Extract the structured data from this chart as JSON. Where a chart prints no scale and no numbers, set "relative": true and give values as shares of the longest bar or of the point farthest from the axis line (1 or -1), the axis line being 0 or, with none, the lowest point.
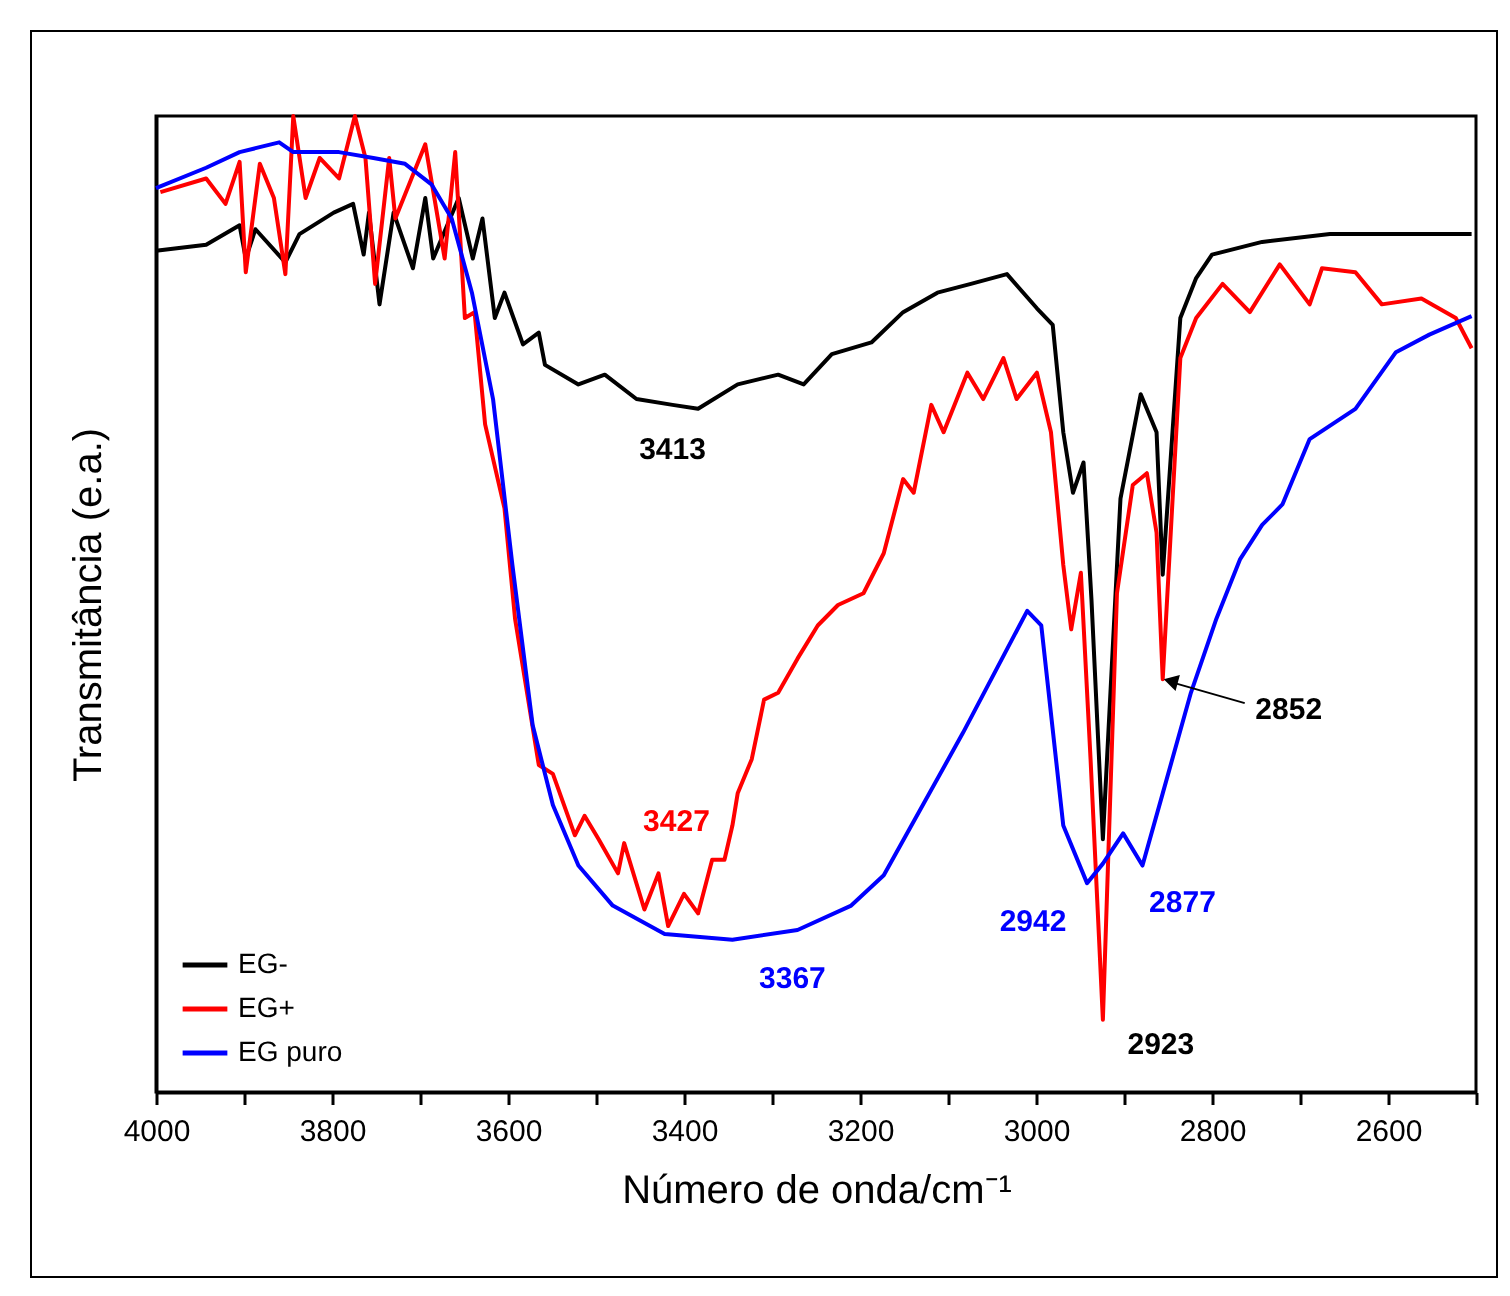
{
  "chart_data": {
    "type": "line",
    "relative": true,
    "xlabel": "Número de onda/cm⁻¹",
    "ylabel": "Transmitância (e.a.)",
    "xlim": [
      4000,
      2500
    ],
    "xticks": [
      4000,
      {
        "value": 3900,
        "label": null
      },
      3800,
      {
        "value": 3700,
        "label": null
      },
      3600,
      {
        "value": 3500,
        "label": null
      },
      3400,
      {
        "value": 3300,
        "label": null
      },
      3200,
      {
        "value": 3100,
        "label": null
      },
      3000,
      {
        "value": 2900,
        "label": null
      },
      2800,
      {
        "value": 2700,
        "label": null
      },
      2600,
      {
        "value": 2500,
        "label": null
      }
    ],
    "legend": "bottom left",
    "series": [
      {
        "name": "EG-",
        "color": "#000000",
        "x": [
          4000,
          3943,
          3905,
          3898,
          3887,
          3853,
          3837,
          3798,
          3776,
          3764,
          3758,
          3746,
          3730,
          3708,
          3694,
          3685,
          3656,
          3640,
          3629,
          3615,
          3604,
          3583,
          3565,
          3558,
          3520,
          3490,
          3454,
          3413,
          3384,
          3339,
          3293,
          3264,
          3232,
          3187,
          3151,
          3112,
          3074,
          3033,
          2999,
          2981,
          2969,
          2958,
          2946,
          2937,
          2924,
          2904,
          2881,
          2863,
          2856,
          2836,
          2818,
          2800,
          2743,
          2666,
          2591,
          2505
        ],
        "values": [
          0.862,
          0.868,
          0.888,
          0.854,
          0.884,
          0.85,
          0.879,
          0.901,
          0.91,
          0.858,
          0.901,
          0.807,
          0.901,
          0.844,
          0.916,
          0.854,
          0.916,
          0.854,
          0.895,
          0.793,
          0.819,
          0.766,
          0.778,
          0.745,
          0.725,
          0.735,
          0.71,
          0.704,
          0.7,
          0.725,
          0.735,
          0.725,
          0.756,
          0.768,
          0.799,
          0.819,
          0.828,
          0.838,
          0.803,
          0.786,
          0.676,
          0.614,
          0.645,
          0.505,
          0.259,
          0.608,
          0.715,
          0.676,
          0.53,
          0.793,
          0.834,
          0.858,
          0.871,
          0.879,
          0.879,
          0.879
        ]
      },
      {
        "name": "EG+",
        "color": "#ff0000",
        "x": [
          3995,
          3943,
          3921,
          3905,
          3898,
          3882,
          3866,
          3853,
          3844,
          3830,
          3814,
          3792,
          3774,
          3762,
          3751,
          3735,
          3728,
          3694,
          3672,
          3660,
          3649,
          3638,
          3626,
          3604,
          3592,
          3565,
          3549,
          3524,
          3513,
          3497,
          3475,
          3468,
          3445,
          3429,
          3418,
          3400,
          3384,
          3368,
          3354,
          3345,
          3339,
          3323,
          3309,
          3293,
          3271,
          3248,
          3225,
          3196,
          3173,
          3151,
          3139,
          3119,
          3105,
          3078,
          3060,
          3037,
          3022,
          2999,
          2983,
          2969,
          2960,
          2949,
          2938,
          2924,
          2908,
          2890,
          2874,
          2863,
          2856,
          2836,
          2818,
          2788,
          2757,
          2723,
          2689,
          2675,
          2637,
          2607,
          2562,
          2523,
          2505
        ],
        "values": [
          0.922,
          0.936,
          0.91,
          0.953,
          0.84,
          0.951,
          0.916,
          0.838,
          1,
          0.916,
          0.957,
          0.936,
          1,
          0.957,
          0.828,
          0.957,
          0.895,
          0.971,
          0.854,
          0.963,
          0.793,
          0.799,
          0.684,
          0.598,
          0.485,
          0.335,
          0.326,
          0.263,
          0.283,
          0.259,
          0.224,
          0.255,
          0.187,
          0.224,
          0.17,
          0.203,
          0.183,
          0.238,
          0.238,
          0.273,
          0.306,
          0.341,
          0.402,
          0.409,
          0.444,
          0.478,
          0.499,
          0.511,
          0.552,
          0.628,
          0.614,
          0.704,
          0.676,
          0.737,
          0.71,
          0.752,
          0.71,
          0.737,
          0.676,
          0.54,
          0.474,
          0.532,
          0.341,
          0.074,
          0.511,
          0.622,
          0.634,
          0.573,
          0.423,
          0.752,
          0.793,
          0.828,
          0.799,
          0.848,
          0.807,
          0.844,
          0.84,
          0.807,
          0.813,
          0.793,
          0.762
        ]
      },
      {
        "name": "EG puro",
        "color": "#0000ff",
        "x": [
          4000,
          3943,
          3905,
          3860,
          3844,
          3792,
          3753,
          3717,
          3687,
          3664,
          3641,
          3617,
          3595,
          3572,
          3549,
          3520,
          3481,
          3422,
          3345,
          3271,
          3210,
          3173,
          3083,
          3010,
          2994,
          2969,
          2942,
          2924,
          2901,
          2879,
          2856,
          2824,
          2795,
          2768,
          2743,
          2720,
          2689,
          2637,
          2591,
          2553,
          2505
        ],
        "values": [
          0.926,
          0.947,
          0.963,
          0.973,
          0.963,
          0.963,
          0.957,
          0.951,
          0.93,
          0.895,
          0.819,
          0.71,
          0.54,
          0.376,
          0.294,
          0.232,
          0.191,
          0.162,
          0.156,
          0.166,
          0.191,
          0.222,
          0.368,
          0.493,
          0.478,
          0.273,
          0.214,
          0.234,
          0.265,
          0.232,
          0.306,
          0.409,
          0.485,
          0.546,
          0.581,
          0.602,
          0.669,
          0.7,
          0.758,
          0.776,
          0.795
        ]
      }
    ],
    "annotations": [
      {
        "text": "3413",
        "x": 3413,
        "y": 0.704
      },
      {
        "text": "3427",
        "x": 3429,
        "y": 0.224
      },
      {
        "text": "3367",
        "x": 3345,
        "y": 0.156
      },
      {
        "text": "2942",
        "x": 2942,
        "y": 0.214
      },
      {
        "text": "2877",
        "x": 2879,
        "y": 0.232
      },
      {
        "text": "2923",
        "x": 2924,
        "y": 0.074
      },
      {
        "text": "2852",
        "x": 2856,
        "y": 0.423
      }
    ]
  }
}
